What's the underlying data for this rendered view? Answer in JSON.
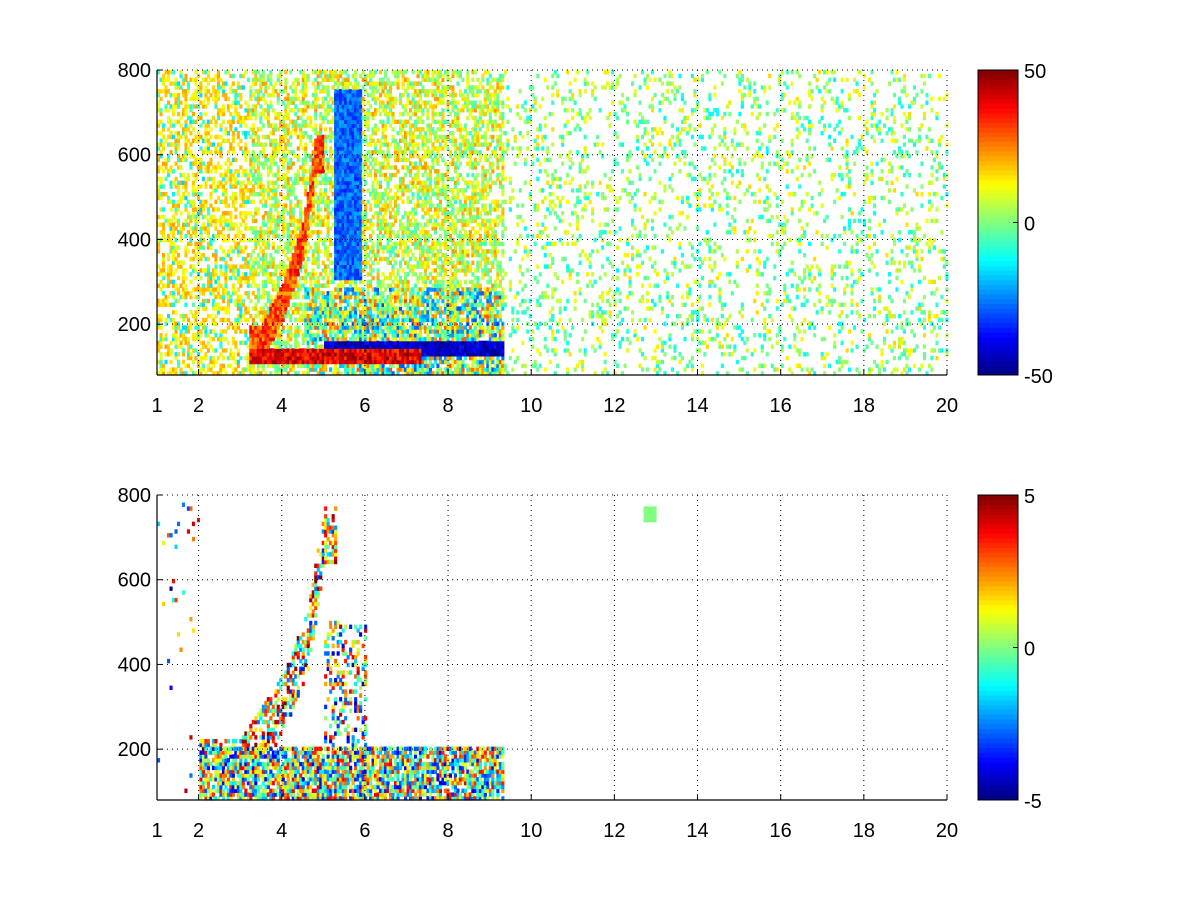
{
  "chart_data": [
    {
      "type": "heatmap",
      "title": "",
      "xlabel": "",
      "ylabel": "",
      "xlim": [
        1,
        20
      ],
      "ylim": [
        80,
        800
      ],
      "x_ticks": [
        "1",
        "2",
        "4",
        "6",
        "8",
        "10",
        "12",
        "14",
        "16",
        "18",
        "20"
      ],
      "x_tick_values": [
        1,
        2,
        4,
        6,
        8,
        10,
        12,
        14,
        16,
        18,
        20
      ],
      "y_ticks": [
        "200",
        "400",
        "600",
        "800"
      ],
      "y_tick_values": [
        200,
        400,
        600,
        800
      ],
      "grid": true,
      "colormap": "jet",
      "clim": [
        -50,
        50
      ],
      "colorbar_ticks": [
        "-50",
        "0",
        "50"
      ],
      "colorbar_tick_values": [
        -50,
        0,
        50
      ],
      "features": [
        {
          "desc": "strong positive band",
          "x_range": [
            3.2,
            7.2
          ],
          "y": 115,
          "value": 45
        },
        {
          "desc": "negative band",
          "x_range": [
            5.0,
            9.2
          ],
          "y": 135,
          "value": -45
        },
        {
          "desc": "rising positive ridge",
          "x": [
            3.5,
            4.0,
            4.5,
            4.8
          ],
          "y": [
            150,
            250,
            400,
            600
          ],
          "value": 30
        },
        {
          "desc": "negative plume",
          "x_range": [
            5.2,
            5.9
          ],
          "y_range": [
            300,
            750
          ],
          "value": -25
        },
        {
          "desc": "scattered near-zero speckle",
          "x_range": [
            9.5,
            20
          ],
          "y_range": [
            80,
            800
          ],
          "value": 0
        }
      ]
    },
    {
      "type": "heatmap",
      "title": "",
      "xlabel": "",
      "ylabel": "",
      "xlim": [
        1,
        20
      ],
      "ylim": [
        80,
        800
      ],
      "x_ticks": [
        "1",
        "2",
        "4",
        "6",
        "8",
        "10",
        "12",
        "14",
        "16",
        "18",
        "20"
      ],
      "x_tick_values": [
        1,
        2,
        4,
        6,
        8,
        10,
        12,
        14,
        16,
        18,
        20
      ],
      "y_ticks": [
        "200",
        "400",
        "600",
        "800"
      ],
      "y_tick_values": [
        200,
        400,
        600,
        800
      ],
      "grid": true,
      "colormap": "jet",
      "clim": [
        -5,
        5
      ],
      "colorbar_ticks": [
        "-5",
        "0",
        "5"
      ],
      "colorbar_tick_values": [
        -5,
        0,
        5
      ],
      "features": [
        {
          "desc": "mixed low band",
          "x_range": [
            2.0,
            9.2
          ],
          "y_range": [
            90,
            200
          ],
          "value": 0
        },
        {
          "desc": "negative streak",
          "x_range": [
            3.4,
            7.0
          ],
          "y": 135,
          "value": -4
        },
        {
          "desc": "rising ridge",
          "x": [
            3.0,
            4.0,
            4.6,
            5.0
          ],
          "y": [
            150,
            300,
            450,
            700
          ],
          "value": 1
        },
        {
          "desc": "isolated patch",
          "x": 12.8,
          "y": 750,
          "value": 0
        }
      ]
    }
  ]
}
